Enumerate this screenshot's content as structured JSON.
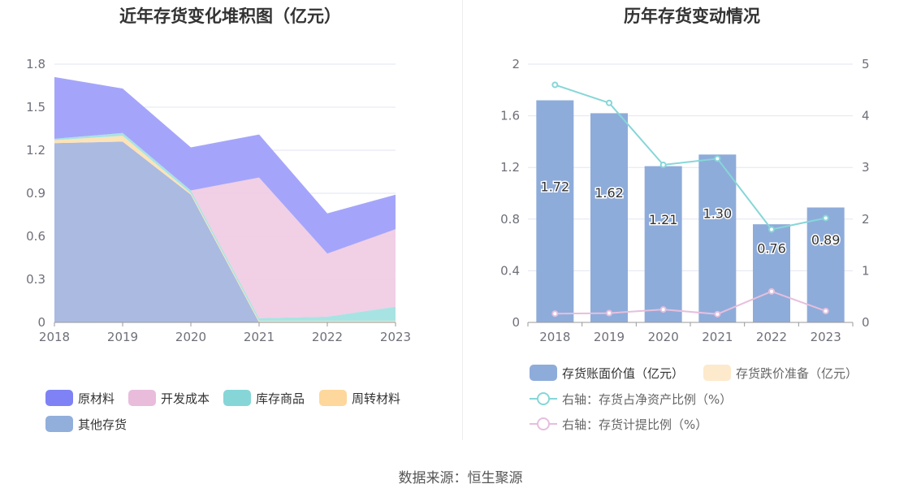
{
  "footer": {
    "source": "数据来源：恒生聚源"
  },
  "chart_data": [
    {
      "type": "area",
      "title": "近年存货变化堆积图（亿元）",
      "x": [
        "2018",
        "2019",
        "2020",
        "2021",
        "2022",
        "2023"
      ],
      "ylim": [
        0,
        1.8
      ],
      "yticks": [
        "0",
        "0.3",
        "0.6",
        "0.9",
        "1.2",
        "1.5",
        "1.8"
      ],
      "stacked": true,
      "grid": true,
      "legend_position": "bottom",
      "series": [
        {
          "name": "其他存货",
          "color": "#a6b6df",
          "values": [
            1.25,
            1.26,
            0.89,
            0.0,
            0.0,
            0.0
          ]
        },
        {
          "name": "周转材料",
          "color": "#fde1b3",
          "values": [
            0.02,
            0.04,
            0.01,
            0.01,
            0.01,
            0.01
          ]
        },
        {
          "name": "库存商品",
          "color": "#a3e2e2",
          "values": [
            0.01,
            0.02,
            0.02,
            0.02,
            0.03,
            0.1
          ]
        },
        {
          "name": "开发成本",
          "color": "#f0cce4",
          "values": [
            0.0,
            0.0,
            0.0,
            0.98,
            0.44,
            0.54
          ]
        },
        {
          "name": "原材料",
          "color": "#9fa0fa",
          "values": [
            0.43,
            0.31,
            0.3,
            0.3,
            0.28,
            0.24
          ]
        }
      ],
      "legend": [
        {
          "name": "原材料",
          "color": "#7f82f5"
        },
        {
          "name": "开发成本",
          "color": "#e9bcdc"
        },
        {
          "name": "库存商品",
          "color": "#86d6d8"
        },
        {
          "name": "周转材料",
          "color": "#fdd79c"
        },
        {
          "name": "其他存货",
          "color": "#92afdc"
        }
      ]
    },
    {
      "type": "bar",
      "title": "历年存货变动情况",
      "x": [
        "2018",
        "2019",
        "2020",
        "2021",
        "2022",
        "2023"
      ],
      "ylim": [
        0,
        2
      ],
      "yticks": [
        "0",
        "0.4",
        "0.8",
        "1.2",
        "1.6",
        "2"
      ],
      "y2lim": [
        0,
        5
      ],
      "y2ticks": [
        "0",
        "1",
        "2",
        "3",
        "4",
        "5"
      ],
      "grid": true,
      "legend_position": "bottom",
      "bar_series": [
        {
          "name": "存货账面价值（亿元）",
          "color": "#8eacda",
          "values": [
            1.72,
            1.62,
            1.21,
            1.3,
            0.76,
            0.89
          ],
          "labels": [
            "1.72",
            "1.62",
            "1.21",
            "1.30",
            "0.76",
            "0.89"
          ]
        },
        {
          "name": "存货跌价准备（亿元）",
          "color": "#fde9cc",
          "values": [
            0,
            0,
            0,
            0,
            0,
            0
          ]
        }
      ],
      "line_series": [
        {
          "name": "右轴：存货占净资产比例（%）",
          "color": "#86d6d8",
          "values": [
            4.6,
            4.25,
            3.05,
            3.17,
            1.8,
            2.02
          ]
        },
        {
          "name": "右轴：存货计提比例（%）",
          "color": "#e6bfdd",
          "values": [
            0.17,
            0.18,
            0.25,
            0.16,
            0.6,
            0.22
          ]
        }
      ]
    }
  ]
}
